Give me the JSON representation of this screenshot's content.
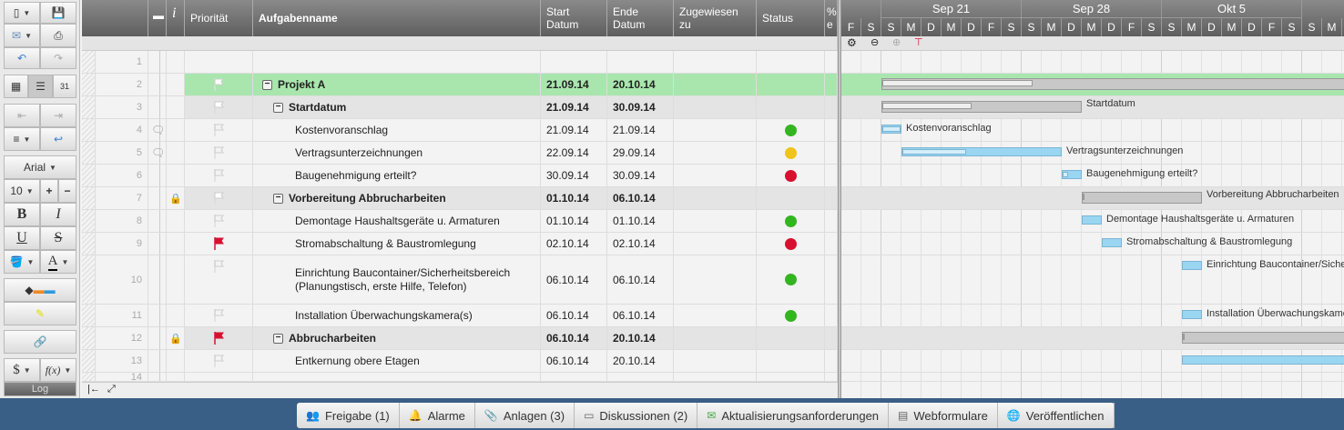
{
  "toolbar": {
    "font": "Arial",
    "size": "10",
    "bold": "B",
    "italic": "I",
    "underline": "U",
    "strike": "S",
    "textcolor": "A",
    "currency": "$",
    "formula": "f(x)",
    "log": "Log"
  },
  "columns": {
    "priority": "Priorität",
    "name": "Aufgabenname",
    "start": "Start Datum",
    "end": "Ende Datum",
    "assigned": "Zugewiesen zu",
    "status": "Status",
    "percent": "% e",
    "info": "i"
  },
  "timeline": {
    "weeks": [
      "Sep 21",
      "Sep 28",
      "Okt 5"
    ],
    "days": [
      "F",
      "S",
      "S",
      "M",
      "D",
      "M",
      "D",
      "F",
      "S",
      "S",
      "M",
      "D",
      "M",
      "D",
      "F",
      "S",
      "S",
      "M",
      "D",
      "M",
      "D",
      "F",
      "S",
      "S",
      "M"
    ]
  },
  "colors": {
    "green": "#33b51f",
    "yellow": "#f0c419",
    "red": "#d7102f",
    "summary_row": "#a8e6ad",
    "flag_red": "#d7102f"
  },
  "rows": [
    {
      "n": "1",
      "name": "",
      "start": "",
      "end": "",
      "level": 0
    },
    {
      "n": "2",
      "name": "Projekt A",
      "start": "21.09.14",
      "end": "20.10.14",
      "level": 0,
      "summary": true,
      "highlight": true,
      "flag": "white",
      "progress": 0.25
    },
    {
      "n": "3",
      "name": "Startdatum",
      "start": "21.09.14",
      "end": "30.09.14",
      "level": 1,
      "summary": true,
      "flag": "white",
      "progress": 0.45,
      "bar_label": "Startdatum"
    },
    {
      "n": "4",
      "name": "Kostenvoranschlag",
      "start": "21.09.14",
      "end": "21.09.14",
      "level": 2,
      "comment": true,
      "flag": "outline",
      "status": "green",
      "progress": 1,
      "bar_label": "Kostenvoranschlag"
    },
    {
      "n": "5",
      "name": "Vertragsunterzeichnungen",
      "start": "22.09.14",
      "end": "29.09.14",
      "level": 2,
      "comment": true,
      "flag": "outline",
      "status": "yellow",
      "progress": 0.4,
      "bar_label": "Vertragsunterzeichnungen"
    },
    {
      "n": "6",
      "name": "Baugenehmigung erteilt?",
      "start": "30.09.14",
      "end": "30.09.14",
      "level": 2,
      "flag": "outline",
      "status": "red",
      "progress": 0.3,
      "bar_label": "Baugenehmigung erteilt?"
    },
    {
      "n": "7",
      "name": "Vorbereitung Abbrucharbeiten",
      "start": "01.10.14",
      "end": "06.10.14",
      "level": 1,
      "summary": true,
      "lock": true,
      "flag": "white",
      "progress": 0,
      "bar_label": "Vorbereitung Abbrucharbeiten"
    },
    {
      "n": "8",
      "name": "Demontage Haushaltsgeräte u. Armaturen",
      "start": "01.10.14",
      "end": "01.10.14",
      "level": 2,
      "flag": "outline",
      "status": "green",
      "bar_label": "Demontage Haushaltsgeräte u. Armaturen"
    },
    {
      "n": "9",
      "name": "Stromabschaltung & Baustromlegung",
      "start": "02.10.14",
      "end": "02.10.14",
      "level": 2,
      "flag": "red",
      "status": "red",
      "bar_label": "Stromabschaltung & Baustromlegung"
    },
    {
      "n": "10",
      "name": "Einrichtung Baucontainer/Sicherheitsbereich (Planungstisch, erste Hilfe, Telefon)",
      "start": "06.10.14",
      "end": "06.10.14",
      "level": 2,
      "flag": "outline",
      "status": "green",
      "tall": true,
      "bar_label": "Einrichtung Baucontainer/Sicherheitsbereich"
    },
    {
      "n": "11",
      "name": "Installation Überwachungskamera(s)",
      "start": "06.10.14",
      "end": "06.10.14",
      "level": 2,
      "flag": "outline",
      "status": "green",
      "bar_label": "Installation Überwachungskamera(s)"
    },
    {
      "n": "12",
      "name": "Abbrucharbeiten",
      "start": "06.10.14",
      "end": "20.10.14",
      "level": 1,
      "summary": true,
      "lock": true,
      "flag": "red",
      "progress": 0
    },
    {
      "n": "13",
      "name": "Entkernung obere Etagen",
      "start": "06.10.14",
      "end": "20.10.14",
      "level": 2,
      "flag": "outline"
    },
    {
      "n": "14",
      "name": "",
      "start": "",
      "end": "",
      "level": 0
    }
  ],
  "tabs": [
    {
      "label": "Freigabe (1)",
      "icon": "users-icon"
    },
    {
      "label": "Alarme",
      "icon": "bell-icon"
    },
    {
      "label": "Anlagen (3)",
      "icon": "paperclip-icon"
    },
    {
      "label": "Diskussionen (2)",
      "icon": "speech-bubble-icon"
    },
    {
      "label": "Aktualisierungsanforderungen",
      "icon": "update-request-icon"
    },
    {
      "label": "Webformulare",
      "icon": "form-icon"
    },
    {
      "label": "Veröffentlichen",
      "icon": "globe-icon"
    }
  ]
}
